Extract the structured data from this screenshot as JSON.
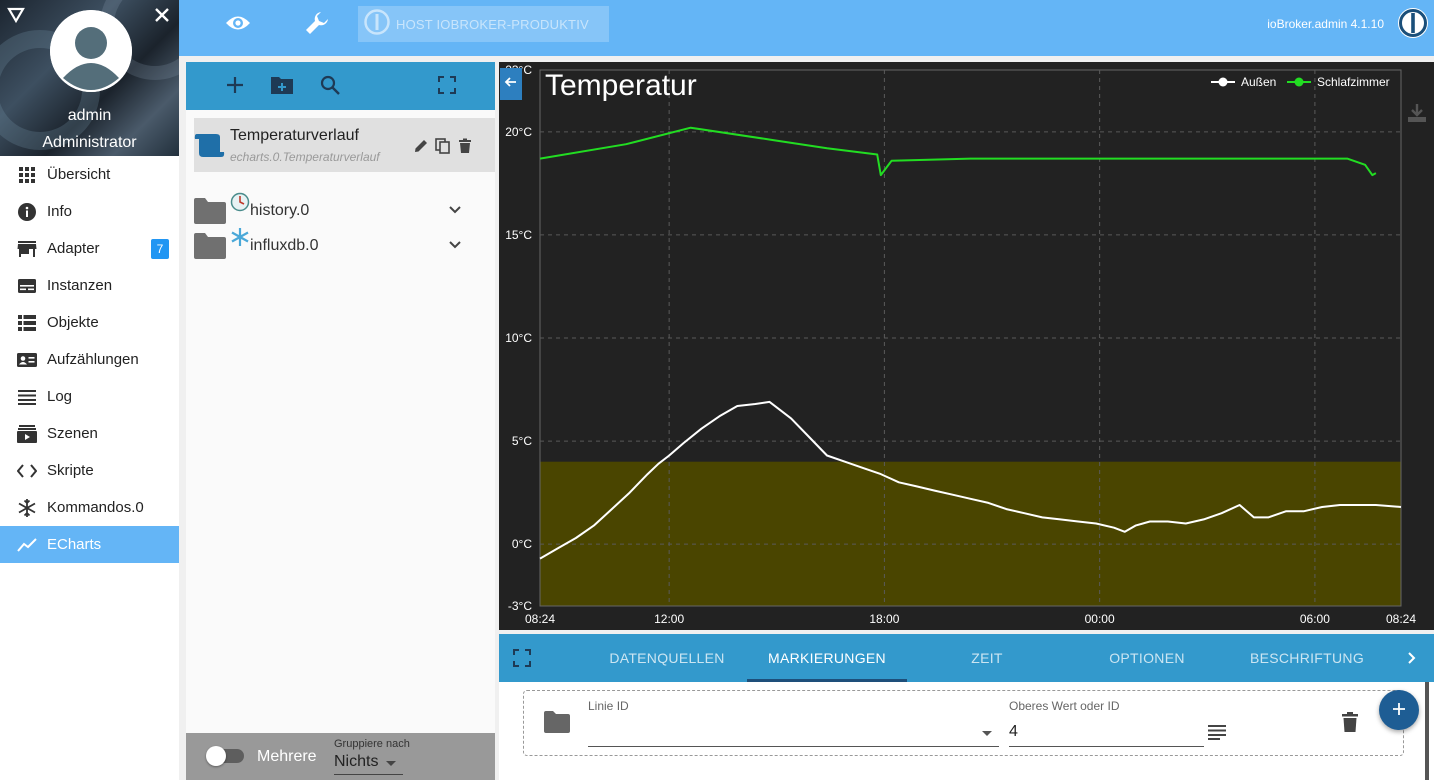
{
  "profile": {
    "name": "admin",
    "role": "Administrator"
  },
  "menu": [
    {
      "label": "Übersicht",
      "icon": "grid-icon"
    },
    {
      "label": "Info",
      "icon": "info-icon"
    },
    {
      "label": "Adapter",
      "icon": "store-icon",
      "badge": "7"
    },
    {
      "label": "Instanzen",
      "icon": "instances-icon"
    },
    {
      "label": "Objekte",
      "icon": "list-icon"
    },
    {
      "label": "Aufzählungen",
      "icon": "enum-icon"
    },
    {
      "label": "Log",
      "icon": "log-icon"
    },
    {
      "label": "Szenen",
      "icon": "scenes-icon"
    },
    {
      "label": "Skripte",
      "icon": "code-icon"
    },
    {
      "label": "Kommandos.0",
      "icon": "snowflake-icon"
    },
    {
      "label": "ECharts",
      "icon": "chart-line-icon",
      "active": true
    }
  ],
  "topbar": {
    "host": "HOST IOBROKER-PRODUKTIV",
    "version": "ioBroker.admin 4.1.10"
  },
  "tree": {
    "chart_item": {
      "name": "Temperaturverlauf",
      "id": "echarts.0.Temperaturverlauf"
    },
    "folders": [
      {
        "label": "history.0"
      },
      {
        "label": "influxdb.0"
      }
    ],
    "bottom": {
      "multi_label": "Mehrere",
      "group_caption": "Gruppiere nach",
      "group_value": "Nichts"
    }
  },
  "tabs": [
    {
      "label": "DATENQUELLEN"
    },
    {
      "label": "MARKIERUNGEN",
      "active": true
    },
    {
      "label": "ZEIT"
    },
    {
      "label": "OPTIONEN"
    },
    {
      "label": "BESCHRIFTUNG"
    }
  ],
  "marking": {
    "line_caption": "Linie ID",
    "line_value": "",
    "upper_caption": "Oberes Wert oder ID",
    "upper_value": "4"
  },
  "colors": {
    "accent": "#64b5f6",
    "tabbar": "#3399cc",
    "series_outside": "#ffffff",
    "series_bedroom": "#22dd22",
    "markarea": "#4a4500",
    "chart_bg": "#222222"
  },
  "chart_data": {
    "type": "line",
    "title": "Temperatur",
    "ylim": [
      -3,
      23
    ],
    "yticks": [
      "-3°C",
      "0°C",
      "5°C",
      "10°C",
      "15°C",
      "20°C",
      "23°C"
    ],
    "ytick_values": [
      -3,
      0,
      5,
      10,
      15,
      20,
      23
    ],
    "xticks": [
      "08:24",
      "12:00",
      "18:00",
      "00:00",
      "06:00",
      "08:24"
    ],
    "xtick_hours": [
      0,
      3.6,
      9.6,
      15.6,
      21.6,
      24
    ],
    "legend": [
      "Außen",
      "Schlafzimmer"
    ],
    "legend_position": "top-right",
    "grid": true,
    "mark_area": {
      "from": -3,
      "to": 4,
      "color": "#4a4500"
    },
    "series": [
      {
        "name": "Außen",
        "color": "#ffffff",
        "points": [
          [
            0,
            -0.7
          ],
          [
            0.5,
            -0.2
          ],
          [
            1,
            0.3
          ],
          [
            1.5,
            0.9
          ],
          [
            2,
            1.7
          ],
          [
            2.5,
            2.5
          ],
          [
            3,
            3.4
          ],
          [
            3.3,
            3.9
          ],
          [
            3.6,
            4.3
          ],
          [
            4,
            4.9
          ],
          [
            4.5,
            5.6
          ],
          [
            5,
            6.2
          ],
          [
            5.5,
            6.7
          ],
          [
            6,
            6.8
          ],
          [
            6.4,
            6.9
          ],
          [
            7,
            6.1
          ],
          [
            7.5,
            5.2
          ],
          [
            8,
            4.3
          ],
          [
            8.5,
            4.0
          ],
          [
            9,
            3.7
          ],
          [
            9.5,
            3.4
          ],
          [
            10,
            3.0
          ],
          [
            10.5,
            2.8
          ],
          [
            11,
            2.6
          ],
          [
            11.5,
            2.4
          ],
          [
            12,
            2.2
          ],
          [
            12.5,
            2.0
          ],
          [
            13,
            1.7
          ],
          [
            13.5,
            1.5
          ],
          [
            14,
            1.3
          ],
          [
            14.5,
            1.2
          ],
          [
            15,
            1.1
          ],
          [
            15.5,
            1.0
          ],
          [
            16,
            0.8
          ],
          [
            16.3,
            0.6
          ],
          [
            16.6,
            0.9
          ],
          [
            17,
            1.1
          ],
          [
            17.5,
            1.1
          ],
          [
            18,
            1.0
          ],
          [
            18.5,
            1.2
          ],
          [
            19,
            1.5
          ],
          [
            19.5,
            1.9
          ],
          [
            19.9,
            1.3
          ],
          [
            20.3,
            1.3
          ],
          [
            20.8,
            1.6
          ],
          [
            21.3,
            1.6
          ],
          [
            21.8,
            1.8
          ],
          [
            22.3,
            1.9
          ],
          [
            22.8,
            1.9
          ],
          [
            23.3,
            1.9
          ],
          [
            24,
            1.8
          ]
        ]
      },
      {
        "name": "Schlafzimmer",
        "color": "#22dd22",
        "points": [
          [
            0,
            18.7
          ],
          [
            2.4,
            19.4
          ],
          [
            4.2,
            20.2
          ],
          [
            6.5,
            19.6
          ],
          [
            8,
            19.2
          ],
          [
            9.4,
            18.9
          ],
          [
            9.5,
            17.9
          ],
          [
            9.8,
            18.6
          ],
          [
            12,
            18.7
          ],
          [
            16,
            18.7
          ],
          [
            20,
            18.7
          ],
          [
            22.5,
            18.7
          ],
          [
            23,
            18.4
          ],
          [
            23.2,
            17.9
          ],
          [
            23.3,
            18.0
          ]
        ]
      }
    ]
  }
}
